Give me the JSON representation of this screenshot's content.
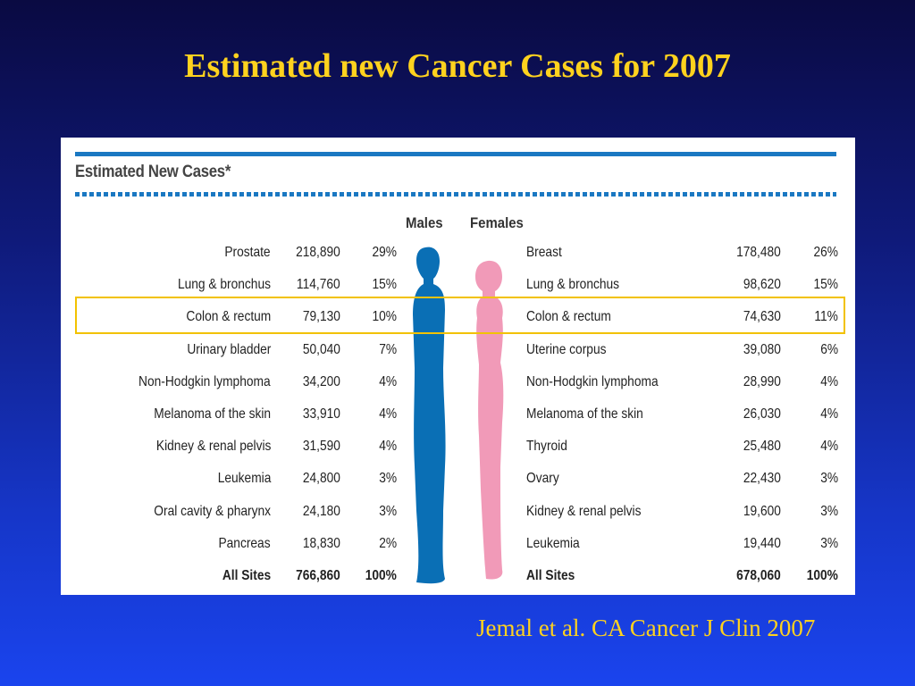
{
  "slide": {
    "title": "Estimated new Cancer Cases for 2007",
    "citation": "Jemal et al. CA Cancer J Clin 2007"
  },
  "table": {
    "heading": "Estimated New Cases*",
    "males_label": "Males",
    "females_label": "Females",
    "highlighted_row": 2,
    "highlight_color": "#f2c200",
    "male_figure_color": "#0a6fb5",
    "female_figure_color": "#f19ab8",
    "males": [
      {
        "site": "Prostate",
        "cases": "218,890",
        "pct": "29%"
      },
      {
        "site": "Lung & bronchus",
        "cases": "114,760",
        "pct": "15%"
      },
      {
        "site": "Colon & rectum",
        "cases": "79,130",
        "pct": "10%"
      },
      {
        "site": "Urinary bladder",
        "cases": "50,040",
        "pct": "7%"
      },
      {
        "site": "Non-Hodgkin lymphoma",
        "cases": "34,200",
        "pct": "4%"
      },
      {
        "site": "Melanoma of the skin",
        "cases": "33,910",
        "pct": "4%"
      },
      {
        "site": "Kidney & renal pelvis",
        "cases": "31,590",
        "pct": "4%"
      },
      {
        "site": "Leukemia",
        "cases": "24,800",
        "pct": "3%"
      },
      {
        "site": "Oral cavity & pharynx",
        "cases": "24,180",
        "pct": "3%"
      },
      {
        "site": "Pancreas",
        "cases": "18,830",
        "pct": "2%"
      },
      {
        "site": "All Sites",
        "cases": "766,860",
        "pct": "100%"
      }
    ],
    "females": [
      {
        "site": "Breast",
        "cases": "178,480",
        "pct": "26%"
      },
      {
        "site": "Lung & bronchus",
        "cases": "98,620",
        "pct": "15%"
      },
      {
        "site": "Colon & rectum",
        "cases": "74,630",
        "pct": "11%"
      },
      {
        "site": "Uterine corpus",
        "cases": "39,080",
        "pct": "6%"
      },
      {
        "site": "Non-Hodgkin lymphoma",
        "cases": "28,990",
        "pct": "4%"
      },
      {
        "site": "Melanoma of the skin",
        "cases": "26,030",
        "pct": "4%"
      },
      {
        "site": "Thyroid",
        "cases": "25,480",
        "pct": "4%"
      },
      {
        "site": "Ovary",
        "cases": "22,430",
        "pct": "3%"
      },
      {
        "site": "Kidney & renal pelvis",
        "cases": "19,600",
        "pct": "3%"
      },
      {
        "site": "Leukemia",
        "cases": "19,440",
        "pct": "3%"
      },
      {
        "site": "All Sites",
        "cases": "678,060",
        "pct": "100%"
      }
    ]
  }
}
